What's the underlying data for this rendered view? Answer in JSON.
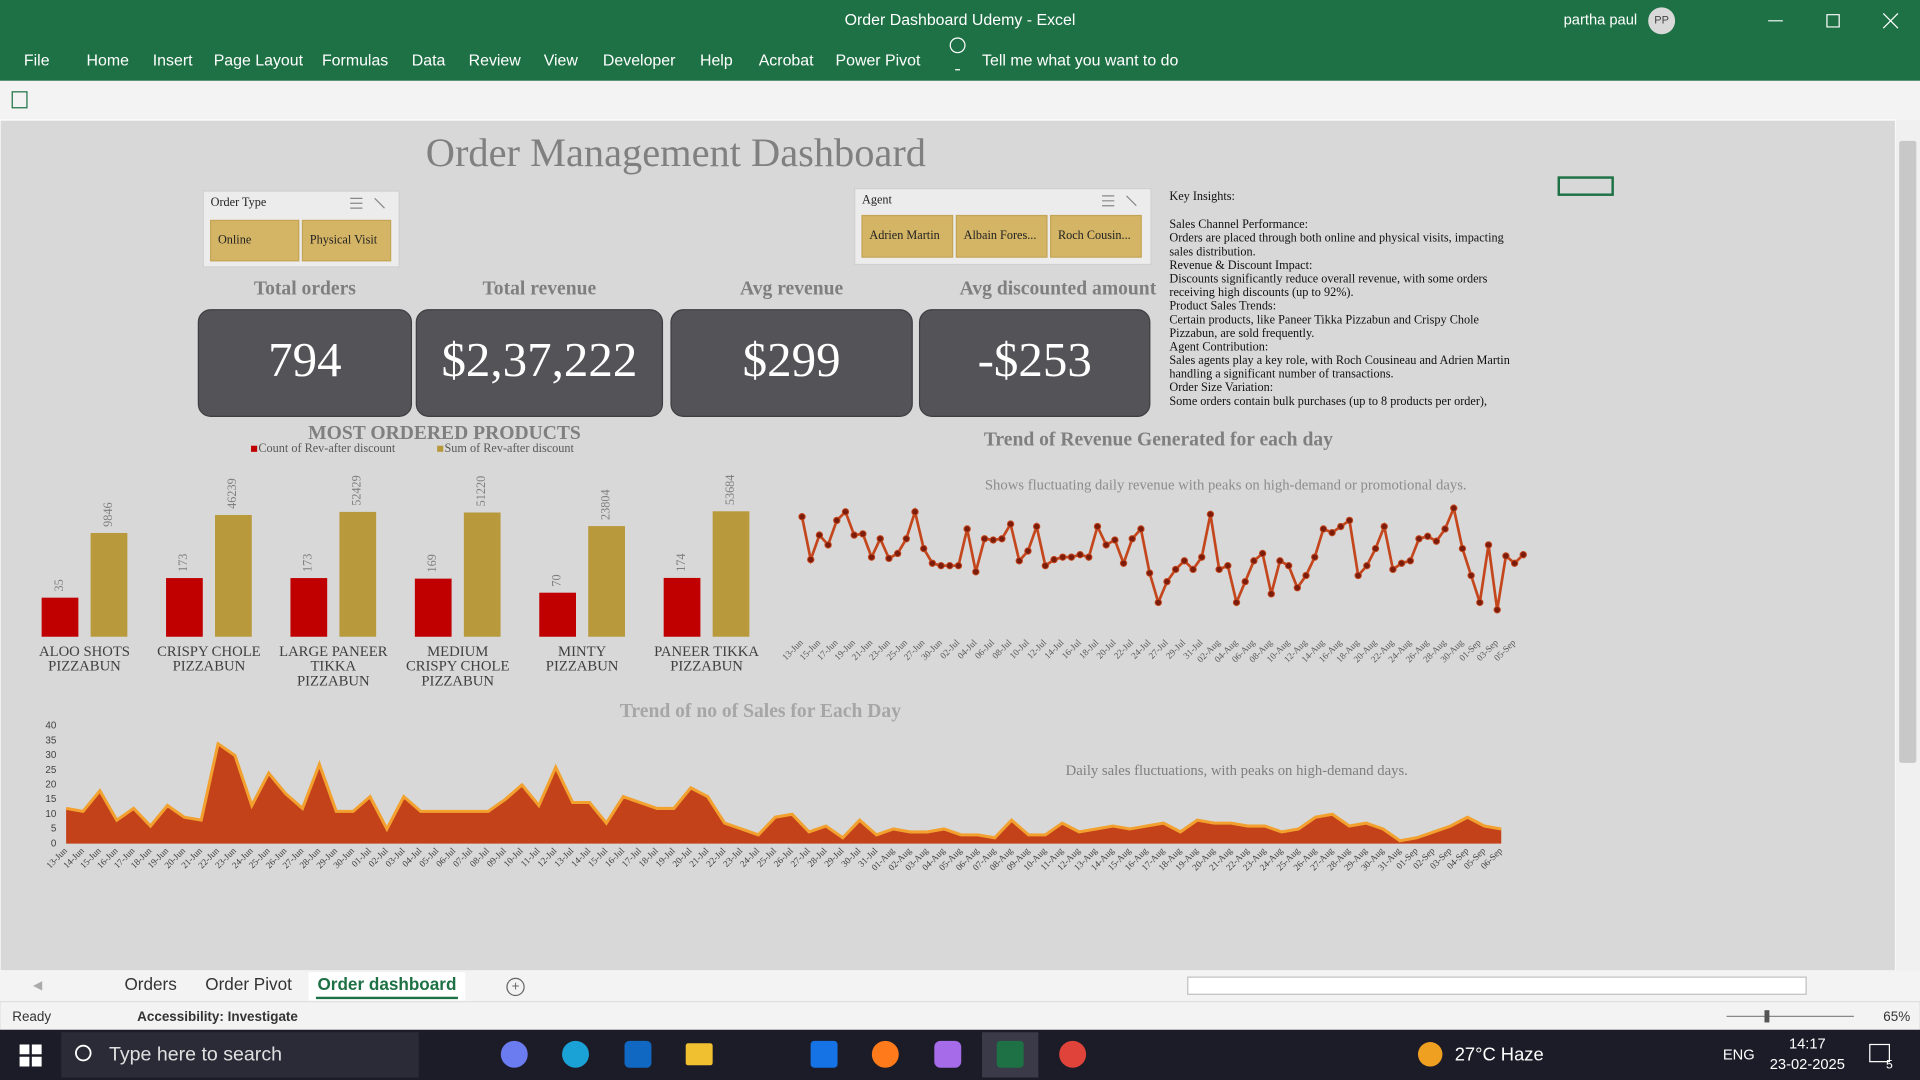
{
  "window": {
    "title": "Order Dashboard Udemy  -  Excel",
    "user": "partha paul",
    "initials": "PP"
  },
  "ribbon": {
    "tabs": [
      "File",
      "Home",
      "Insert",
      "Page Layout",
      "Formulas",
      "Data",
      "Review",
      "View",
      "Developer",
      "Help",
      "Acrobat",
      "Power Pivot"
    ],
    "search": "Tell me what you want to do"
  },
  "dashboard": {
    "title": "Order Management Dashboard",
    "slicers": [
      {
        "title": "Order Type",
        "items": [
          "Online",
          "Physical Visit"
        ]
      },
      {
        "title": "Agent",
        "items": [
          "Adrien Martin",
          "Albain Fores...",
          "Roch Cousin..."
        ]
      }
    ],
    "kpis": [
      {
        "label": "Total orders",
        "value": "794"
      },
      {
        "label": "Total revenue",
        "value": "$2,37,222"
      },
      {
        "label": "Avg revenue",
        "value": "$299"
      },
      {
        "label": "Avg discounted amount",
        "value": "-$253"
      }
    ],
    "insights": {
      "heading": "Key Insights:",
      "lines": [
        "Sales Channel Performance:",
        "Orders are placed through both online and physical visits, impacting",
        "sales distribution.",
        "Revenue & Discount Impact:",
        "Discounts significantly reduce overall revenue, with some orders",
        "receiving high discounts (up to 92%).",
        "Product Sales Trends:",
        "Certain products, like Paneer Tikka Pizzabun and Crispy Chole",
        "Pizzabun, are sold frequently.",
        "Agent Contribution:",
        "Sales agents play a key role, with Roch Cousineau and Adrien Martin",
        "handling a significant number of transactions.",
        "Order Size Variation:",
        "Some orders contain bulk purchases (up to 8 products per order),"
      ]
    }
  },
  "charts": [
    {
      "type": "bar",
      "title": "MOST ORDERED PRODUCTS",
      "categories": [
        [
          "ALOO SHOTS",
          "PIZZABUN"
        ],
        [
          "CRISPY CHOLE",
          "PIZZABUN"
        ],
        [
          "LARGE PANEER",
          "TIKKA",
          "PIZZABUN"
        ],
        [
          "MEDIUM",
          "CRISPY CHOLE",
          "PIZZABUN"
        ],
        [
          "MINTY",
          "PIZZABUN"
        ],
        [
          "PANEER TIKKA",
          "PIZZABUN"
        ]
      ],
      "series": [
        {
          "name": "Count of Rev-after discount",
          "color": "#c00000",
          "values": [
            35,
            173,
            173,
            169,
            70,
            174
          ],
          "axis": "y2"
        },
        {
          "name": "Sum of Rev-after discount",
          "color": "#b8993c",
          "values": [
            9846,
            46239,
            52429,
            51220,
            23804,
            53684
          ]
        }
      ],
      "ylim": [
        -200000,
        60000
      ],
      "y2lim": [
        -240,
        665
      ],
      "data_labels": true
    },
    {
      "type": "line",
      "title": "Trend of Revenue Generated for each day",
      "annotation": "Shows fluctuating daily revenue with peaks on high-demand or promotional days.",
      "categories": [
        "13-Jun",
        null,
        "15-Jun",
        null,
        "17-Jun",
        null,
        "19-Jun",
        null,
        "21-Jun",
        null,
        "23-Jun",
        null,
        "25-Jun",
        null,
        "27-Jun",
        null,
        "30-Jun",
        null,
        "02-Jul",
        null,
        "04-Jul",
        null,
        "06-Jul",
        null,
        "08-Jul",
        null,
        "10-Jul",
        null,
        "12-Jul",
        null,
        "14-Jul",
        null,
        "16-Jul",
        null,
        "18-Jul",
        null,
        "20-Jul",
        null,
        "22-Jul",
        null,
        "24-Jul",
        null,
        "27-Jul",
        null,
        "29-Jul",
        null,
        "31-Jul",
        null,
        "02-Aug",
        null,
        "04-Aug",
        null,
        "06-Aug",
        null,
        "08-Aug",
        null,
        "10-Aug",
        null,
        "12-Aug",
        null,
        "14-Aug",
        null,
        "16-Aug",
        null,
        "18-Aug",
        null,
        "20-Aug",
        null,
        "22-Aug",
        null,
        "24-Aug",
        null,
        "26-Aug",
        null,
        "28-Aug",
        null,
        "30-Aug",
        null,
        "01-Sep",
        null,
        "03-Sep",
        null,
        "05-Sep",
        null
      ],
      "values": [
        2940,
        1890,
        2490,
        2250,
        2850,
        3060,
        2490,
        2520,
        1950,
        2400,
        1920,
        2040,
        2400,
        3060,
        2160,
        1800,
        1740,
        1740,
        1740,
        2640,
        1590,
        2400,
        2370,
        2400,
        2760,
        1860,
        2100,
        2700,
        1740,
        1890,
        1950,
        1950,
        2010,
        1950,
        2700,
        2250,
        2370,
        1800,
        2400,
        2640,
        1560,
        840,
        1350,
        1650,
        1860,
        1650,
        1950,
        3000,
        1650,
        1740,
        840,
        1350,
        1860,
        2040,
        1050,
        1860,
        1740,
        1200,
        1500,
        1950,
        2640,
        2550,
        2700,
        2850,
        1500,
        1740,
        2160,
        2700,
        1650,
        1800,
        1860,
        2400,
        2460,
        2340,
        2640,
        3150,
        2160,
        1500,
        840,
        2250,
        660,
        1980,
        1800,
        2010
      ],
      "color": "#c4461d",
      "marker_color": "#7a1d0c",
      "ylim": [
        0,
        3600
      ]
    },
    {
      "type": "area",
      "title": "Trend of no of Sales for Each Day",
      "annotation": "Daily sales fluctuations, with peaks on high-demand days.",
      "categories": [
        "13-Jun",
        "14-Jun",
        "15-Jun",
        "16-Jun",
        "17-Jun",
        "18-Jun",
        "19-Jun",
        "20-Jun",
        "21-Jun",
        "22-Jun",
        "23-Jun",
        "24-Jun",
        "25-Jun",
        "26-Jun",
        "27-Jun",
        "28-Jun",
        "29-Jun",
        "30-Jun",
        "01-Jul",
        "02-Jul",
        "03-Jul",
        "04-Jul",
        "05-Jul",
        "06-Jul",
        "07-Jul",
        "08-Jul",
        "09-Jul",
        "10-Jul",
        "11-Jul",
        "12-Jul",
        "13-Jul",
        "14-Jul",
        "15-Jul",
        "16-Jul",
        "17-Jul",
        "18-Jul",
        "19-Jul",
        "20-Jul",
        "21-Jul",
        "22-Jul",
        "23-Jul",
        "24-Jul",
        "25-Jul",
        "26-Jul",
        "27-Jul",
        "28-Jul",
        "29-Jul",
        "30-Jul",
        "31-Jul",
        "01-Aug",
        "02-Aug",
        "03-Aug",
        "04-Aug",
        "05-Aug",
        "06-Aug",
        "07-Aug",
        "08-Aug",
        "09-Aug",
        "10-Aug",
        "11-Aug",
        "12-Aug",
        "13-Aug",
        "14-Aug",
        "15-Aug",
        "16-Aug",
        "17-Aug",
        "18-Aug",
        "19-Aug",
        "20-Aug",
        "21-Aug",
        "22-Aug",
        "23-Aug",
        "24-Aug",
        "25-Aug",
        "26-Aug",
        "27-Aug",
        "28-Aug",
        "29-Aug",
        "30-Aug",
        "31-Aug",
        "01-Sep",
        "02-Sep",
        "03-Sep",
        "04-Sep",
        "05-Sep",
        "06-Sep"
      ],
      "values": [
        12,
        11,
        18,
        8,
        12,
        6,
        13,
        9,
        8,
        34,
        30,
        13,
        24,
        17,
        12,
        27,
        11,
        11,
        16,
        5,
        16,
        11,
        11,
        11,
        11,
        11,
        15,
        20,
        13,
        26,
        14,
        14,
        7,
        16,
        14,
        12,
        12,
        19,
        16,
        7,
        5,
        3,
        9,
        10,
        4,
        6,
        2,
        8,
        3,
        5,
        4,
        4,
        5,
        3,
        3,
        2,
        8,
        3,
        3,
        7,
        4,
        5,
        6,
        5,
        6,
        7,
        4,
        8,
        7,
        7,
        6,
        6,
        4,
        5,
        9,
        10,
        6,
        7,
        5,
        1,
        2,
        4,
        6,
        9,
        6,
        5
      ],
      "color": "#c4421a",
      "line_color": "#f2a12e",
      "ylim": [
        0,
        40
      ],
      "yticks": [
        0,
        5,
        10,
        15,
        20,
        25,
        30,
        35,
        40
      ]
    }
  ],
  "sheet_tabs": [
    "Orders",
    "Order Pivot",
    "Order dashboard"
  ],
  "status": {
    "ready": "Ready",
    "accessibility": "Accessibility: Investigate",
    "zoom": "65%"
  },
  "taskbar": {
    "search": "Type here to search",
    "weather": "27°C Haze",
    "language": "ENG",
    "time": "14:17",
    "date": "23-02-2025",
    "notifications": "5"
  }
}
